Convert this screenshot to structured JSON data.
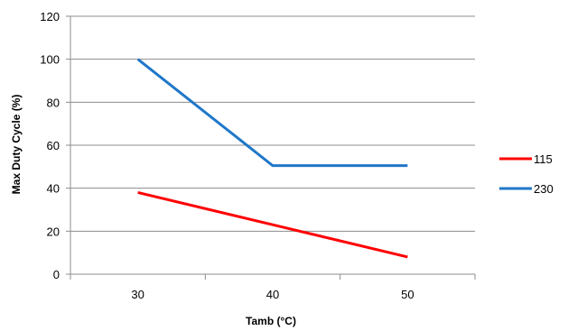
{
  "chart_data": {
    "type": "line",
    "categories": [
      "30",
      "40",
      "50"
    ],
    "x": [
      30,
      40,
      50
    ],
    "series": [
      {
        "name": "115",
        "color": "#ff0000",
        "values": [
          38,
          23,
          8
        ]
      },
      {
        "name": "230",
        "color": "#1f77c9",
        "values": [
          100,
          50.5,
          50.5
        ]
      }
    ],
    "title": "",
    "xlabel": "Tamb (°C)",
    "ylabel": "Max Duty Cycle (%)",
    "ylim": [
      0,
      120
    ],
    "yticks": [
      "0",
      "20",
      "40",
      "60",
      "80",
      "100",
      "120"
    ],
    "grid": "horizontal",
    "legend_position": "right"
  }
}
